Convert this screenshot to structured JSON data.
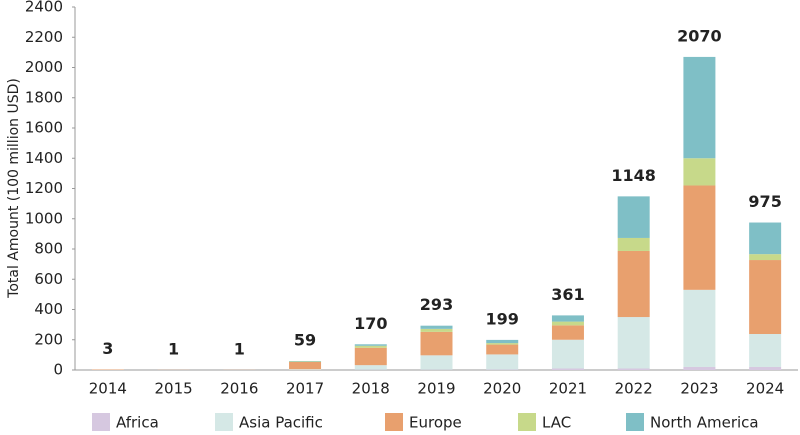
{
  "chart_data": {
    "type": "stacked_bar",
    "ylabel": "Total Amount (100 million USD)",
    "categories": [
      "2014",
      "2015",
      "2016",
      "2017",
      "2018",
      "2019",
      "2020",
      "2021",
      "2022",
      "2023",
      "2024"
    ],
    "series": [
      {
        "name": "Africa",
        "color": "#d6c8e0",
        "values": [
          0,
          0,
          0,
          0,
          2,
          2,
          3,
          10,
          10,
          20,
          20
        ]
      },
      {
        "name": "Asia Pacific",
        "color": "#d5e8e6",
        "values": [
          0,
          0,
          0,
          5,
          30,
          95,
          100,
          190,
          340,
          510,
          218
        ]
      },
      {
        "name": "Europe",
        "color": "#e8a06e",
        "values": [
          3,
          1,
          1,
          48,
          115,
          155,
          65,
          95,
          437,
          690,
          489
        ]
      },
      {
        "name": "LAC",
        "color": "#c7d98a",
        "values": [
          0,
          0,
          0,
          3,
          13,
          20,
          10,
          25,
          86,
          180,
          39
        ]
      },
      {
        "name": "North America",
        "color": "#7fbfc6",
        "values": [
          0,
          0,
          0,
          3,
          10,
          21,
          21,
          41,
          275,
          670,
          209
        ]
      }
    ],
    "totals": [
      3,
      1,
      1,
      59,
      170,
      293,
      199,
      361,
      1148,
      2070,
      975
    ],
    "ylim": [
      0,
      2400
    ],
    "yticks": [
      0,
      200,
      400,
      600,
      800,
      1000,
      1200,
      1400,
      1600,
      1800,
      2000,
      2200,
      2400
    ]
  }
}
